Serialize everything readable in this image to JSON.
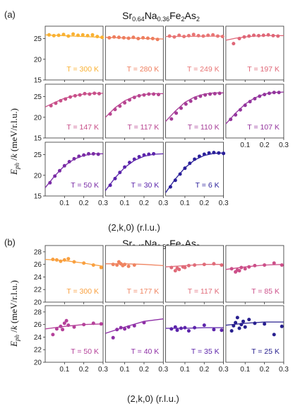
{
  "chart_data": [
    {
      "type": "scatter",
      "panel_label": "(a)",
      "title": "Sr0.64Na0.36Fe2As2",
      "title_parts": [
        [
          "Sr",
          ""
        ],
        [
          "0.64",
          "sub"
        ],
        [
          "Na",
          ""
        ],
        [
          "0.36",
          "sub"
        ],
        [
          "Fe",
          ""
        ],
        [
          "2",
          "sub"
        ],
        [
          "As",
          ""
        ],
        [
          "2",
          "sub"
        ]
      ],
      "ylabel": "E_ph / k (meV/r.l.u.)",
      "xlabel": "(2,k,0) (r.l.u.)",
      "xlim": [
        0,
        0.3
      ],
      "ylim": [
        15,
        28
      ],
      "xticks": [
        "0.1",
        "0.2",
        "0.3"
      ],
      "yticks": [
        "15",
        "20",
        "25"
      ],
      "subplots": [
        {
          "label": "T = 300 K",
          "color": "#f9b132",
          "x": [
            0.02,
            0.045,
            0.07,
            0.095,
            0.12,
            0.145,
            0.17,
            0.195,
            0.22,
            0.245,
            0.27,
            0.295
          ],
          "y": [
            25.9,
            25.7,
            25.8,
            26.0,
            25.6,
            26.1,
            25.8,
            25.9,
            25.7,
            25.9,
            25.5,
            25.3
          ],
          "fit_x": [
            0.0,
            0.3
          ],
          "fit_y": [
            25.9,
            25.3
          ]
        },
        {
          "label": "T = 280 K",
          "color": "#ee7e5e",
          "x": [
            0.02,
            0.045,
            0.07,
            0.095,
            0.12,
            0.145,
            0.17,
            0.195,
            0.22,
            0.245,
            0.27
          ],
          "y": [
            25.2,
            25.4,
            25.3,
            25.2,
            25.1,
            25.3,
            25.0,
            25.2,
            25.1,
            25.0,
            24.8
          ],
          "fit_x": [
            0.0,
            0.3
          ],
          "fit_y": [
            25.3,
            24.9
          ]
        },
        {
          "label": "T = 249 K",
          "color": "#e87575",
          "x": [
            0.02,
            0.045,
            0.07,
            0.095,
            0.12,
            0.145,
            0.17,
            0.195,
            0.22,
            0.245,
            0.27,
            0.295
          ],
          "y": [
            25.6,
            25.4,
            25.8,
            25.5,
            25.7,
            26.0,
            25.7,
            25.6,
            25.8,
            25.9,
            25.6,
            25.5
          ],
          "fit_x": [
            0.0,
            0.3
          ],
          "fit_y": [
            25.5,
            25.6
          ]
        },
        {
          "label": "T = 197 K",
          "color": "#df6677",
          "x": [
            0.04,
            0.07,
            0.095,
            0.12,
            0.145,
            0.17,
            0.195,
            0.22,
            0.245,
            0.27
          ],
          "y": [
            23.8,
            25.0,
            25.4,
            25.6,
            25.8,
            25.7,
            25.8,
            25.9,
            25.7,
            25.6
          ],
          "fit_x": [
            0.0,
            0.05,
            0.1,
            0.15,
            0.2,
            0.25,
            0.3
          ],
          "fit_y": [
            24.6,
            25.1,
            25.4,
            25.6,
            25.7,
            25.7,
            25.7
          ]
        },
        {
          "label": "T = 147 K",
          "color": "#c84f89",
          "x": [
            0.03,
            0.055,
            0.08,
            0.105,
            0.13,
            0.155,
            0.18,
            0.205,
            0.23,
            0.255,
            0.28
          ],
          "y": [
            22.8,
            23.4,
            24.0,
            24.4,
            24.9,
            25.2,
            25.4,
            25.7,
            25.6,
            25.8,
            25.7
          ],
          "fit_x": [
            0.0,
            0.05,
            0.1,
            0.15,
            0.2,
            0.25,
            0.3
          ],
          "fit_y": [
            22.5,
            23.6,
            24.6,
            25.2,
            25.6,
            25.8,
            25.8
          ]
        },
        {
          "label": "T = 117 K",
          "color": "#b94591",
          "x": [
            0.025,
            0.05,
            0.075,
            0.1,
            0.125,
            0.15,
            0.175,
            0.2,
            0.225,
            0.25,
            0.275
          ],
          "y": [
            20.8,
            21.9,
            22.7,
            23.5,
            24.2,
            24.8,
            25.2,
            25.4,
            25.6,
            25.6,
            25.5
          ],
          "fit_x": [
            0.0,
            0.05,
            0.1,
            0.15,
            0.2,
            0.25,
            0.3
          ],
          "fit_y": [
            20.0,
            22.3,
            24.0,
            25.0,
            25.5,
            25.7,
            25.7
          ]
        },
        {
          "label": "T = 110 K",
          "color": "#a53c97",
          "x": [
            0.03,
            0.055,
            0.08,
            0.105,
            0.13,
            0.155,
            0.18,
            0.205,
            0.23,
            0.255,
            0.28
          ],
          "y": [
            19.6,
            21.0,
            22.2,
            23.2,
            23.9,
            24.6,
            25.1,
            25.4,
            25.6,
            25.7,
            25.8
          ],
          "fit_x": [
            0.0,
            0.05,
            0.1,
            0.15,
            0.2,
            0.25,
            0.3
          ],
          "fit_y": [
            19.0,
            21.5,
            23.6,
            24.9,
            25.6,
            25.9,
            25.9
          ]
        },
        {
          "label": "T = 107 K",
          "color": "#93349d",
          "x": [
            0.025,
            0.05,
            0.075,
            0.1,
            0.125,
            0.15,
            0.175,
            0.2,
            0.225,
            0.25,
            0.275
          ],
          "y": [
            19.5,
            20.6,
            21.8,
            22.9,
            23.8,
            24.5,
            25.1,
            25.5,
            25.8,
            26.0,
            26.0
          ],
          "fit_x": [
            0.0,
            0.05,
            0.1,
            0.15,
            0.2,
            0.25,
            0.3
          ],
          "fit_y": [
            18.4,
            21.0,
            23.2,
            24.7,
            25.6,
            26.0,
            26.1
          ]
        },
        {
          "label": "T = 50 K",
          "color": "#7a2ca6",
          "x": [
            0.025,
            0.05,
            0.075,
            0.1,
            0.125,
            0.15,
            0.175,
            0.2,
            0.225,
            0.25,
            0.275
          ],
          "y": [
            18.2,
            19.8,
            21.1,
            22.3,
            23.3,
            24.0,
            24.6,
            24.9,
            25.2,
            25.2,
            25.1
          ],
          "fit_x": [
            0.0,
            0.05,
            0.1,
            0.15,
            0.2,
            0.25,
            0.3
          ],
          "fit_y": [
            17.0,
            19.9,
            22.3,
            23.9,
            24.8,
            25.2,
            25.2
          ]
        },
        {
          "label": "T = 30 K",
          "color": "#5b24ab",
          "x": [
            0.025,
            0.05,
            0.075,
            0.1,
            0.125,
            0.15,
            0.175,
            0.2,
            0.225,
            0.25
          ],
          "y": [
            17.6,
            19.2,
            20.7,
            22.0,
            23.1,
            23.9,
            24.5,
            24.9,
            25.1,
            25.2
          ],
          "fit_x": [
            0.0,
            0.05,
            0.1,
            0.15,
            0.2,
            0.25,
            0.3
          ],
          "fit_y": [
            16.3,
            19.4,
            21.9,
            23.6,
            24.6,
            25.1,
            25.2
          ]
        },
        {
          "label": "T = 6 K",
          "color": "#2a1f9a",
          "x": [
            0.025,
            0.05,
            0.075,
            0.1,
            0.125,
            0.15,
            0.175,
            0.2,
            0.225,
            0.25,
            0.275,
            0.3
          ],
          "y": [
            17.2,
            18.8,
            20.3,
            21.7,
            22.9,
            23.9,
            24.6,
            25.1,
            25.4,
            25.5,
            25.4,
            25.3
          ],
          "fit_x": [
            0.0,
            0.05,
            0.1,
            0.15,
            0.2,
            0.25,
            0.3
          ],
          "fit_y": [
            15.8,
            19.1,
            21.8,
            23.7,
            24.8,
            25.3,
            25.4
          ]
        }
      ]
    },
    {
      "type": "scatter",
      "panel_label": "(b)",
      "title": "Sr0.45Na0.55Fe2As2",
      "title_parts": [
        [
          "Sr",
          ""
        ],
        [
          "0.45",
          "sub"
        ],
        [
          "Na",
          ""
        ],
        [
          "0.55",
          "sub"
        ],
        [
          "Fe",
          ""
        ],
        [
          "2",
          "sub"
        ],
        [
          "As",
          ""
        ],
        [
          "2",
          "sub"
        ]
      ],
      "ylabel": "E_ph / k (meV/r.l.u.)",
      "xlabel": "(2,k,0) (r.l.u.)",
      "xlim": [
        0,
        0.3
      ],
      "ylim": [
        20,
        29
      ],
      "xticks": [
        "0.1",
        "0.2",
        "0.3"
      ],
      "yticks": [
        "20",
        "22",
        "24",
        "26",
        "28"
      ],
      "subplots": [
        {
          "label": "T = 300 K",
          "color": "#f9a03f",
          "x": [
            0.04,
            0.06,
            0.08,
            0.1,
            0.12,
            0.15,
            0.2,
            0.25,
            0.29
          ],
          "y": [
            26.8,
            26.7,
            26.5,
            26.7,
            26.9,
            26.4,
            26.2,
            25.9,
            25.5
          ],
          "fit_x": [
            0.0,
            0.1,
            0.2,
            0.3
          ],
          "fit_y": [
            26.8,
            26.6,
            26.2,
            25.7
          ]
        },
        {
          "label": "T = 177 K",
          "color": "#ef8461",
          "x": [
            0.04,
            0.06,
            0.07,
            0.08,
            0.09,
            0.1,
            0.12,
            0.15
          ],
          "y": [
            26.0,
            25.9,
            26.4,
            26.1,
            25.8,
            26.0,
            25.7,
            25.9
          ],
          "fit_x": [
            0.0,
            0.1,
            0.2,
            0.3
          ],
          "fit_y": [
            26.1,
            26.1,
            26.0,
            25.8
          ]
        },
        {
          "label": "T = 117 K",
          "color": "#e06b79",
          "x": [
            0.03,
            0.05,
            0.06,
            0.07,
            0.09,
            0.1,
            0.12,
            0.15,
            0.2,
            0.25,
            0.29
          ],
          "y": [
            25.5,
            25.0,
            25.4,
            25.2,
            25.6,
            25.5,
            25.8,
            25.9,
            26.0,
            26.1,
            25.9
          ],
          "fit_x": [
            0.0,
            0.1,
            0.2,
            0.3
          ],
          "fit_y": [
            25.6,
            25.8,
            26.0,
            26.0
          ]
        },
        {
          "label": "T = 85 K",
          "color": "#cc4f89",
          "x": [
            0.03,
            0.05,
            0.06,
            0.07,
            0.08,
            0.1,
            0.12,
            0.15,
            0.2,
            0.25,
            0.29
          ],
          "y": [
            25.3,
            24.8,
            25.1,
            25.0,
            25.5,
            25.3,
            25.6,
            25.8,
            25.9,
            26.2,
            25.9
          ],
          "fit_x": [
            0.0,
            0.1,
            0.2,
            0.3
          ],
          "fit_y": [
            25.2,
            25.6,
            25.9,
            26.0
          ]
        },
        {
          "label": "T = 50 K",
          "color": "#b5419a",
          "x": [
            0.04,
            0.06,
            0.08,
            0.09,
            0.1,
            0.11,
            0.12,
            0.15,
            0.2,
            0.25,
            0.29
          ],
          "y": [
            24.4,
            25.3,
            25.7,
            25.2,
            26.2,
            26.6,
            25.9,
            25.6,
            26.0,
            26.2,
            26.1
          ],
          "fit_x": [
            0.0,
            0.1,
            0.2,
            0.3
          ],
          "fit_y": [
            25.3,
            25.7,
            26.0,
            26.1
          ]
        },
        {
          "label": "T = 40 K",
          "color": "#8e2fa6",
          "x": [
            0.04,
            0.06,
            0.08,
            0.1,
            0.12,
            0.15,
            0.2
          ],
          "y": [
            23.9,
            25.2,
            25.5,
            25.3,
            25.6,
            25.8,
            26.3
          ],
          "fit_x": [
            0.0,
            0.1,
            0.2,
            0.3
          ],
          "fit_y": [
            24.6,
            25.6,
            26.5,
            26.9
          ]
        },
        {
          "label": "T = 35 K",
          "color": "#5d25ab",
          "x": [
            0.03,
            0.05,
            0.06,
            0.08,
            0.1,
            0.12,
            0.15,
            0.2,
            0.25,
            0.29
          ],
          "y": [
            25.3,
            25.6,
            25.1,
            25.4,
            25.5,
            25.0,
            25.5,
            25.9,
            25.2,
            25.1
          ],
          "fit_x": [
            0.0,
            0.1,
            0.2,
            0.3
          ],
          "fit_y": [
            25.4,
            25.4,
            25.5,
            25.5
          ]
        },
        {
          "label": "T = 25 K",
          "color": "#28208f",
          "x": [
            0.03,
            0.04,
            0.05,
            0.06,
            0.07,
            0.08,
            0.09,
            0.1,
            0.12,
            0.15,
            0.2,
            0.25,
            0.29
          ],
          "y": [
            25.0,
            25.8,
            26.3,
            27.1,
            25.4,
            26.0,
            26.5,
            25.6,
            26.8,
            26.2,
            26.1,
            24.4,
            25.7
          ],
          "fit_x": [
            0.0,
            0.1,
            0.2,
            0.3
          ],
          "fit_y": [
            25.9,
            26.2,
            26.4,
            26.4
          ]
        }
      ]
    }
  ]
}
